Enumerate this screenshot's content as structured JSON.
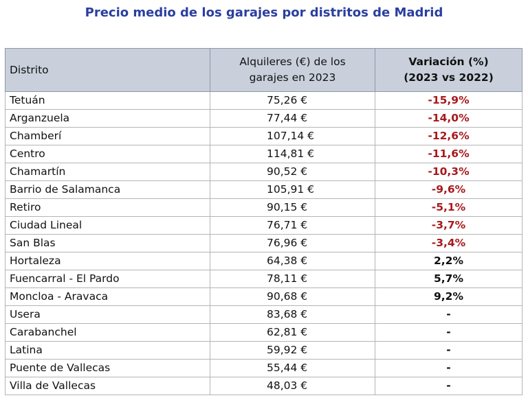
{
  "chart_data": {
    "type": "table",
    "title": "Precio medio de los garajes por distritos de Madrid",
    "columns": [
      "Distrito",
      "Alquileres (€) de los\ngarajes en 2023",
      "Variación (%)\n(2023 vs 2022)"
    ],
    "rows": [
      {
        "distrito": "Tetuán",
        "alquiler": "75,26 €",
        "variacion": "-15,9%",
        "tipo": "neg"
      },
      {
        "distrito": "Arganzuela",
        "alquiler": "77,44 €",
        "variacion": "-14,0%",
        "tipo": "neg"
      },
      {
        "distrito": "Chamberí",
        "alquiler": "107,14 €",
        "variacion": "-12,6%",
        "tipo": "neg"
      },
      {
        "distrito": "Centro",
        "alquiler": "114,81 €",
        "variacion": "-11,6%",
        "tipo": "neg"
      },
      {
        "distrito": "Chamartín",
        "alquiler": "90,52 €",
        "variacion": "-10,3%",
        "tipo": "neg"
      },
      {
        "distrito": "Barrio de Salamanca",
        "alquiler": "105,91 €",
        "variacion": "-9,6%",
        "tipo": "neg"
      },
      {
        "distrito": "Retiro",
        "alquiler": "90,15 €",
        "variacion": "-5,1%",
        "tipo": "neg"
      },
      {
        "distrito": "Ciudad Lineal",
        "alquiler": "76,71 €",
        "variacion": "-3,7%",
        "tipo": "neg"
      },
      {
        "distrito": "San Blas",
        "alquiler": "76,96 €",
        "variacion": "-3,4%",
        "tipo": "neg"
      },
      {
        "distrito": "Hortaleza",
        "alquiler": "64,38 €",
        "variacion": "2,2%",
        "tipo": "pos"
      },
      {
        "distrito": "Fuencarral - El Pardo",
        "alquiler": "78,11 €",
        "variacion": "5,7%",
        "tipo": "pos"
      },
      {
        "distrito": "Moncloa - Aravaca",
        "alquiler": "90,68 €",
        "variacion": "9,2%",
        "tipo": "pos"
      },
      {
        "distrito": "Usera",
        "alquiler": "83,68 €",
        "variacion": "-",
        "tipo": "none"
      },
      {
        "distrito": "Carabanchel",
        "alquiler": "62,81 €",
        "variacion": "-",
        "tipo": "none"
      },
      {
        "distrito": "Latina",
        "alquiler": "59,92 €",
        "variacion": "-",
        "tipo": "none"
      },
      {
        "distrito": "Puente de Vallecas",
        "alquiler": "55,44 €",
        "variacion": "-",
        "tipo": "none"
      },
      {
        "distrito": "Villa de Vallecas",
        "alquiler": "48,03 €",
        "variacion": "-",
        "tipo": "none"
      }
    ]
  },
  "colors": {
    "title": "#2a3fa0",
    "header_background": "#c9d0dc",
    "negative_variation": "#a8191c",
    "positive_variation": "#111111"
  }
}
